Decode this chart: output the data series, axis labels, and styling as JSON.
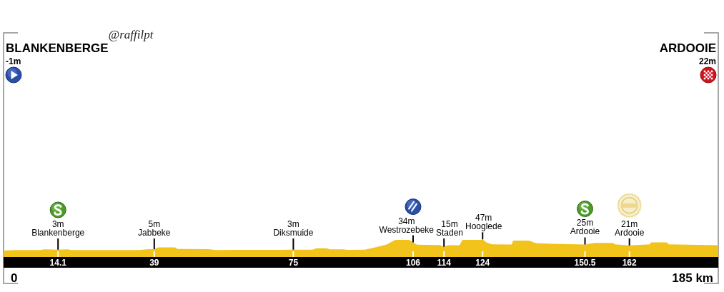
{
  "chart_data": {
    "type": "area",
    "annotations": [
      "BLANKENBERGE",
      "-1m",
      "ARDOOIE",
      "22m",
      {
        "text": "Blankenberge",
        "x": 14.1,
        "y": 3
      },
      {
        "text": "Jabbeke",
        "x": 39,
        "y": 5
      },
      {
        "text": "Diksmuide",
        "x": 75,
        "y": 3
      },
      {
        "text": "Westrozebeke",
        "x": 106,
        "y": 34
      },
      {
        "text": "Staden",
        "x": 114,
        "y": 15
      },
      {
        "text": "Hooglede",
        "x": 124,
        "y": 47
      },
      {
        "text": "Ardooie",
        "x": 150.5,
        "y": 25
      },
      {
        "text": "Ardooie",
        "x": 162,
        "y": 21
      },
      "@raffilpt",
      "0",
      "185 km"
    ],
    "series": [
      {
        "color": "#f2c31b",
        "x": [
          0,
          3,
          9.5,
          10.5,
          14.1,
          16.6,
          17.5,
          35,
          37,
          39,
          40,
          44.4,
          45,
          53,
          55,
          60,
          71,
          75,
          80,
          81,
          83.6,
          84.5,
          88,
          89,
          93.5,
          96,
          99,
          101.4,
          105,
          106,
          107,
          113,
          114,
          115,
          118,
          118.8,
          123.6,
          124,
          125,
          126.4,
          131.5,
          131.9,
          136,
          137.7,
          142,
          150.5,
          153,
          157.7,
          158.3,
          162,
          167.3,
          167.6,
          171.6,
          172.2,
          185
        ],
        "values": [
          -1,
          1,
          1,
          4,
          3,
          4,
          1,
          1,
          4,
          5,
          13,
          13,
          6,
          5,
          1,
          2,
          2,
          3,
          3,
          9,
          9,
          4,
          4,
          2,
          3,
          12,
          24,
          45,
          45,
          34,
          24,
          23,
          15,
          22,
          22,
          45,
          45,
          47,
          34,
          26,
          25,
          42,
          42,
          31,
          28,
          25,
          32,
          32,
          26,
          21,
          26,
          34,
          34,
          26,
          22
        ],
        "value_labels": [
          null,
          null,
          null,
          null,
          "3m",
          null,
          null,
          null,
          null,
          "5m",
          null,
          null,
          null,
          null,
          null,
          null,
          null,
          "3m",
          null,
          null,
          null,
          null,
          null,
          null,
          null,
          null,
          null,
          null,
          null,
          "34m",
          null,
          null,
          "15m",
          null,
          null,
          null,
          null,
          "47m",
          null,
          null,
          null,
          null,
          null,
          null,
          null,
          "25m",
          null,
          null,
          null,
          "21m",
          null,
          null,
          null,
          null,
          null
        ]
      }
    ],
    "xlim": [
      0,
      185
    ],
    "xticks": [
      14.1,
      39,
      75,
      106,
      114,
      124,
      150.5,
      162
    ],
    "grid": "x",
    "tick_labels": "x"
  }
}
